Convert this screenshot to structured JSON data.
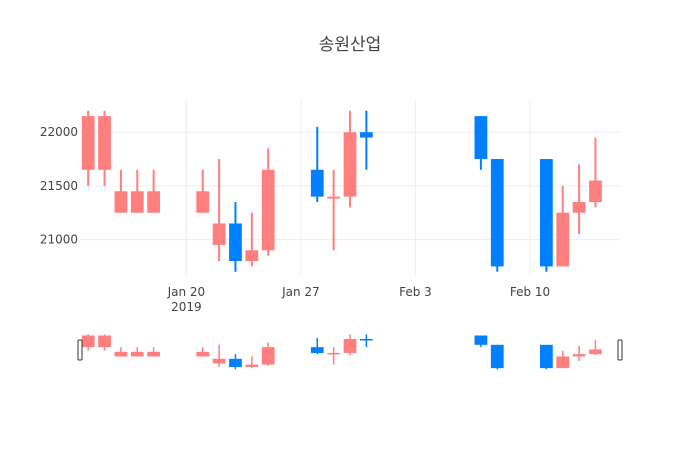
{
  "chart_data": {
    "type": "candlestick",
    "title": "송원산업",
    "xlabel": "",
    "ylabel": "",
    "ylim": [
      20670,
      22300
    ],
    "xlim": [
      "2019-01-14",
      "2019-02-15"
    ],
    "grid": true,
    "legend": "none",
    "y_ticks": [
      21000,
      21500,
      22000
    ],
    "x_ticks": [
      {
        "date": "2019-01-20",
        "label": "Jan 20",
        "sub": "2019"
      },
      {
        "date": "2019-01-27",
        "label": "Jan 27",
        "sub": ""
      },
      {
        "date": "2019-02-03",
        "label": "Feb 3",
        "sub": ""
      },
      {
        "date": "2019-02-10",
        "label": "Feb 10",
        "sub": ""
      }
    ],
    "increasing_color": "#ff7f7f",
    "decreasing_color": "#0080ff",
    "rangeslider": true,
    "candles": [
      {
        "date": "2019-01-14",
        "open": 21650,
        "high": 22200,
        "low": 21500,
        "close": 22150
      },
      {
        "date": "2019-01-15",
        "open": 21650,
        "high": 22200,
        "low": 21500,
        "close": 22150
      },
      {
        "date": "2019-01-16",
        "open": 21250,
        "high": 21650,
        "low": 21250,
        "close": 21450
      },
      {
        "date": "2019-01-17",
        "open": 21250,
        "high": 21650,
        "low": 21250,
        "close": 21450
      },
      {
        "date": "2019-01-18",
        "open": 21250,
        "high": 21650,
        "low": 21250,
        "close": 21450
      },
      {
        "date": "2019-01-21",
        "open": 21250,
        "high": 21650,
        "low": 21250,
        "close": 21450
      },
      {
        "date": "2019-01-22",
        "open": 20950,
        "high": 21750,
        "low": 20800,
        "close": 21150
      },
      {
        "date": "2019-01-23",
        "open": 21150,
        "high": 21350,
        "low": 20700,
        "close": 20800
      },
      {
        "date": "2019-01-24",
        "open": 20800,
        "high": 21250,
        "low": 20750,
        "close": 20900
      },
      {
        "date": "2019-01-25",
        "open": 20900,
        "high": 21850,
        "low": 20850,
        "close": 21650
      },
      {
        "date": "2019-01-28",
        "open": 21650,
        "high": 22050,
        "low": 21350,
        "close": 21400
      },
      {
        "date": "2019-01-29",
        "open": 21400,
        "high": 21650,
        "low": 20900,
        "close": 21400
      },
      {
        "date": "2019-01-30",
        "open": 21400,
        "high": 22200,
        "low": 21300,
        "close": 22000
      },
      {
        "date": "2019-01-31",
        "open": 22000,
        "high": 22200,
        "low": 21650,
        "close": 21950
      },
      {
        "date": "2019-02-07",
        "open": 22150,
        "high": 22150,
        "low": 21650,
        "close": 21750
      },
      {
        "date": "2019-02-08",
        "open": 21750,
        "high": 21750,
        "low": 20700,
        "close": 20750
      },
      {
        "date": "2019-02-11",
        "open": 21750,
        "high": 21750,
        "low": 20700,
        "close": 20750
      },
      {
        "date": "2019-02-12",
        "open": 20750,
        "high": 21500,
        "low": 20750,
        "close": 21250
      },
      {
        "date": "2019-02-13",
        "open": 21250,
        "high": 21700,
        "low": 21050,
        "close": 21350
      },
      {
        "date": "2019-02-14",
        "open": 21350,
        "high": 21950,
        "low": 21300,
        "close": 21550
      }
    ]
  }
}
